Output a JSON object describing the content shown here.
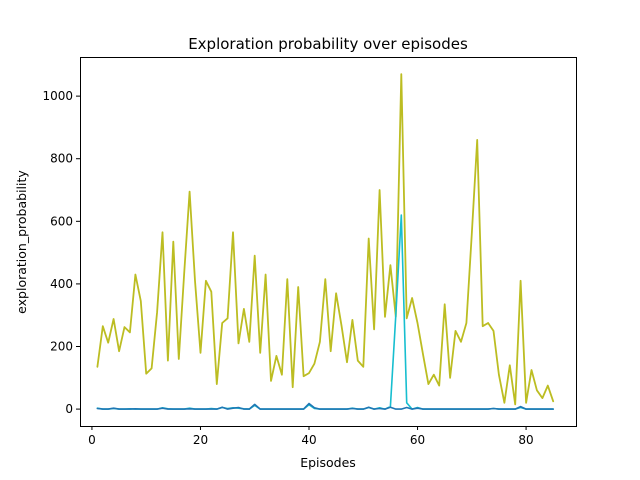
{
  "chart_data": {
    "type": "line",
    "title": "Exploration probability over episodes",
    "xlabel": "Episodes",
    "ylabel": "exploration_probability",
    "xlim": [
      -2.2,
      89.2
    ],
    "ylim": [
      -54,
      1125
    ],
    "xticks": [
      0,
      20,
      40,
      60,
      80
    ],
    "yticks": [
      0,
      200,
      400,
      600,
      800,
      1000
    ],
    "grid": false,
    "legend": "none",
    "x": [
      1,
      2,
      3,
      4,
      5,
      6,
      7,
      8,
      9,
      10,
      11,
      12,
      13,
      14,
      15,
      16,
      17,
      18,
      19,
      20,
      21,
      22,
      23,
      24,
      25,
      26,
      27,
      28,
      29,
      30,
      31,
      32,
      33,
      34,
      35,
      36,
      37,
      38,
      39,
      40,
      41,
      42,
      43,
      44,
      45,
      46,
      47,
      48,
      49,
      50,
      51,
      52,
      53,
      54,
      55,
      56,
      57,
      58,
      59,
      60,
      61,
      62,
      63,
      64,
      65,
      66,
      67,
      68,
      69,
      70,
      71,
      72,
      73,
      74,
      75,
      76,
      77,
      78,
      79,
      80,
      81,
      82,
      83,
      84,
      85
    ],
    "series": [
      {
        "color": "#bcbd22",
        "values": [
          135,
          265,
          212,
          288,
          185,
          262,
          245,
          430,
          345,
          113,
          130,
          310,
          565,
          155,
          535,
          160,
          435,
          695,
          410,
          180,
          410,
          375,
          80,
          275,
          290,
          565,
          210,
          320,
          215,
          490,
          180,
          430,
          90,
          170,
          110,
          415,
          70,
          390,
          105,
          115,
          145,
          215,
          415,
          185,
          370,
          265,
          150,
          285,
          155,
          135,
          545,
          255,
          700,
          295,
          460,
          295,
          1070,
          290,
          355,
          275,
          175,
          80,
          110,
          75,
          335,
          100,
          250,
          215,
          275,
          560,
          860,
          265,
          275,
          250,
          110,
          20,
          140,
          15,
          410,
          20,
          125,
          60,
          35,
          75,
          25
        ]
      },
      {
        "color": "#17becf",
        "values": [
          3,
          0,
          0,
          2,
          0,
          0,
          1,
          0,
          0,
          0,
          0,
          0,
          4,
          1,
          0,
          0,
          0,
          3,
          0,
          0,
          0,
          2,
          0,
          5,
          2,
          4,
          3,
          1,
          0,
          12,
          0,
          0,
          0,
          0,
          0,
          0,
          0,
          0,
          0,
          14,
          2,
          0,
          0,
          0,
          0,
          0,
          0,
          3,
          0,
          0,
          5,
          0,
          4,
          0,
          8,
          300,
          620,
          20,
          0,
          5,
          0,
          0,
          0,
          0,
          0,
          0,
          0,
          0,
          0,
          0,
          0,
          0,
          0,
          2,
          0,
          0,
          0,
          0,
          5,
          0,
          0,
          0,
          0,
          0,
          0
        ]
      },
      {
        "color": "#1f77b4",
        "values": [
          2,
          0,
          0,
          3,
          0,
          0,
          0,
          1,
          0,
          0,
          0,
          0,
          3,
          0,
          0,
          0,
          0,
          1,
          0,
          0,
          0,
          0,
          0,
          6,
          0,
          3,
          5,
          0,
          0,
          15,
          0,
          0,
          0,
          0,
          0,
          0,
          0,
          0,
          0,
          18,
          4,
          0,
          0,
          0,
          0,
          0,
          0,
          2,
          0,
          0,
          6,
          0,
          2,
          0,
          6,
          0,
          0,
          5,
          0,
          3,
          0,
          0,
          0,
          0,
          0,
          0,
          0,
          0,
          0,
          0,
          0,
          0,
          0,
          2,
          0,
          0,
          0,
          0,
          8,
          0,
          0,
          0,
          0,
          0,
          0
        ]
      }
    ]
  }
}
